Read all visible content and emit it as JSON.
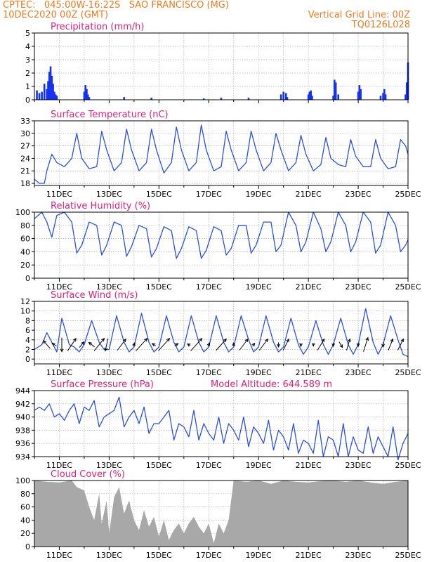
{
  "header": {
    "line1_left": "CPTEC:   045:00W-16:22S   SAO FRANCISCO (MG)",
    "line2_left": "10DEC2020 00Z (GMT)",
    "line2_right": "Vertical Grid Line: 00Z",
    "line3_right": "TQ0126L028"
  },
  "colors": {
    "header": "#f07a1e",
    "title": "#e0207a",
    "series": "#2a4fe8",
    "bars": "#1432f0",
    "cloud": "#a8a8a8",
    "grid": "#9a9a9a"
  },
  "x_axis": {
    "start_day": 10,
    "end_day": 25,
    "tick_labels": [
      "11DEC",
      "13DEC",
      "15DEC",
      "17DEC",
      "19DEC",
      "21DEC",
      "23DEC",
      "25DEC"
    ]
  },
  "chart_data": [
    {
      "id": "precip",
      "type": "bar",
      "title": "Precipitation (mm/h)",
      "ylim": [
        0,
        5
      ],
      "yticks": [
        0,
        1,
        2,
        3,
        4,
        5
      ],
      "xlabels_shown": false,
      "x": [
        10.1,
        10.2,
        10.3,
        10.4,
        10.5,
        10.55,
        10.6,
        10.65,
        10.7,
        10.75,
        10.8,
        10.85,
        10.9,
        12.0,
        12.05,
        12.1,
        12.15,
        12.2,
        13.6,
        14.7,
        16.8,
        17.5,
        18.6,
        19.9,
        20.0,
        20.1,
        20.15,
        21.0,
        21.05,
        21.1,
        21.15,
        22.0,
        22.05,
        22.1,
        22.2,
        23.0,
        23.05,
        23.1,
        23.9,
        24.0,
        24.05,
        24.1,
        24.9,
        24.95,
        25.0
      ],
      "values": [
        0.7,
        0.5,
        0.6,
        1.2,
        0.8,
        1.4,
        2.1,
        2.5,
        1.8,
        1.2,
        0.6,
        0.4,
        0.3,
        0.6,
        1.1,
        0.8,
        0.4,
        0.2,
        0.2,
        0.15,
        0.1,
        0.15,
        0.15,
        0.4,
        0.6,
        0.5,
        0.2,
        0.4,
        0.6,
        0.7,
        0.3,
        0.3,
        1.5,
        1.3,
        0.4,
        0.6,
        1.1,
        0.8,
        0.3,
        0.5,
        0.8,
        0.4,
        0.4,
        1.3,
        2.8
      ]
    },
    {
      "id": "temp",
      "type": "line",
      "title": "Surface Temperature (nC)",
      "ylim": [
        17.5,
        33
      ],
      "yticks": [
        18,
        21,
        24,
        27,
        30,
        33
      ],
      "xlabels_shown": true,
      "x": [
        10.0,
        10.2,
        10.4,
        10.5,
        10.7,
        10.9,
        11.2,
        11.5,
        11.7,
        11.9,
        12.2,
        12.5,
        12.7,
        12.9,
        13.2,
        13.5,
        13.7,
        13.9,
        14.2,
        14.5,
        14.7,
        14.9,
        15.2,
        15.5,
        15.7,
        15.9,
        16.2,
        16.5,
        16.7,
        16.9,
        17.2,
        17.5,
        17.7,
        17.9,
        18.2,
        18.5,
        18.7,
        18.9,
        19.2,
        19.5,
        19.7,
        19.9,
        20.2,
        20.5,
        20.7,
        20.9,
        21.2,
        21.5,
        21.7,
        21.9,
        22.2,
        22.5,
        22.7,
        22.9,
        23.2,
        23.5,
        23.7,
        23.9,
        24.2,
        24.5,
        24.7,
        24.9,
        25.0
      ],
      "values": [
        19.0,
        18.0,
        18.0,
        21.0,
        25.0,
        23.0,
        22.0,
        24.0,
        30.0,
        24.0,
        21.5,
        22.0,
        30.5,
        26.0,
        21.0,
        23.0,
        31.0,
        26.0,
        21.0,
        23.0,
        31.0,
        26.0,
        20.5,
        23.0,
        31.5,
        26.0,
        21.0,
        23.0,
        32.0,
        26.0,
        21.0,
        22.0,
        30.5,
        26.0,
        21.0,
        23.0,
        30.5,
        26.0,
        21.0,
        23.0,
        30.0,
        26.0,
        21.0,
        23.0,
        29.5,
        25.0,
        21.0,
        22.5,
        29.0,
        24.0,
        22.5,
        22.0,
        28.5,
        24.5,
        22.0,
        22.0,
        28.5,
        24.0,
        21.5,
        22.0,
        28.5,
        27.0,
        25.0
      ]
    },
    {
      "id": "rh",
      "type": "line",
      "title": "Relative Humidity (%)",
      "ylim": [
        0,
        100
      ],
      "yticks": [
        0,
        20,
        40,
        60,
        80,
        100
      ],
      "xlabels_shown": true,
      "x": [
        10.0,
        10.3,
        10.5,
        10.7,
        10.9,
        11.2,
        11.5,
        11.7,
        11.9,
        12.2,
        12.5,
        12.7,
        12.9,
        13.2,
        13.5,
        13.7,
        13.9,
        14.2,
        14.5,
        14.7,
        14.9,
        15.2,
        15.5,
        15.7,
        15.9,
        16.2,
        16.5,
        16.7,
        16.9,
        17.2,
        17.5,
        17.7,
        17.9,
        18.2,
        18.5,
        18.7,
        18.9,
        19.2,
        19.5,
        19.7,
        19.9,
        20.2,
        20.5,
        20.7,
        20.9,
        21.2,
        21.5,
        21.7,
        21.9,
        22.2,
        22.5,
        22.7,
        22.9,
        23.2,
        23.5,
        23.7,
        23.9,
        24.2,
        24.5,
        24.7,
        24.9,
        25.0
      ],
      "values": [
        90.0,
        100.0,
        85.0,
        62.0,
        95.0,
        100.0,
        85.0,
        38.0,
        50.0,
        85.0,
        80.0,
        35.0,
        50.0,
        85.0,
        80.0,
        33.0,
        48.0,
        80.0,
        75.0,
        32.0,
        45.0,
        78.0,
        72.0,
        30.0,
        45.0,
        78.0,
        72.0,
        30.0,
        42.0,
        78.0,
        72.0,
        35.0,
        45.0,
        80.0,
        80.0,
        38.0,
        50.0,
        85.0,
        85.0,
        40.0,
        50.0,
        100.0,
        80.0,
        40.0,
        55.0,
        100.0,
        75.0,
        40.0,
        55.0,
        100.0,
        80.0,
        40.0,
        55.0,
        100.0,
        85.0,
        38.0,
        50.0,
        100.0,
        80.0,
        40.0,
        50.0,
        58.0
      ]
    },
    {
      "id": "wind",
      "type": "line",
      "title": "Surface Wind (m/s)",
      "ylim": [
        -1,
        12
      ],
      "yticks": [
        0,
        2,
        4,
        6,
        8,
        10,
        12
      ],
      "xlabels_shown": true,
      "x": [
        10.0,
        10.3,
        10.5,
        10.7,
        10.9,
        11.1,
        11.4,
        11.6,
        11.8,
        12.0,
        12.3,
        12.6,
        12.8,
        13.0,
        13.3,
        13.6,
        13.8,
        14.0,
        14.3,
        14.6,
        14.8,
        15.0,
        15.3,
        15.6,
        15.8,
        16.0,
        16.3,
        16.6,
        16.8,
        17.0,
        17.3,
        17.6,
        17.8,
        18.0,
        18.3,
        18.6,
        18.8,
        19.0,
        19.3,
        19.6,
        19.8,
        20.0,
        20.3,
        20.6,
        20.8,
        21.0,
        21.3,
        21.6,
        21.8,
        22.0,
        22.3,
        22.6,
        22.8,
        23.0,
        23.3,
        23.6,
        23.8,
        24.0,
        24.3,
        24.6,
        24.8,
        25.0
      ],
      "values": [
        2.0,
        3.0,
        5.5,
        3.5,
        1.5,
        8.5,
        3.0,
        2.5,
        1.5,
        3.0,
        8.0,
        3.5,
        2.0,
        2.0,
        9.0,
        3.5,
        1.5,
        2.5,
        9.5,
        3.5,
        1.5,
        2.5,
        9.0,
        3.5,
        1.5,
        2.5,
        9.0,
        3.5,
        1.5,
        2.5,
        9.0,
        3.5,
        1.5,
        2.5,
        9.0,
        4.0,
        1.5,
        2.5,
        9.0,
        3.5,
        1.5,
        2.5,
        8.5,
        3.0,
        1.0,
        2.5,
        8.0,
        3.0,
        1.0,
        3.0,
        8.5,
        3.0,
        1.0,
        3.0,
        10.5,
        3.5,
        1.0,
        3.0,
        9.0,
        4.0,
        1.0,
        0.5
      ],
      "arrows": [
        {
          "x": 10.5,
          "u": -1.2,
          "v": 1.4
        },
        {
          "x": 10.8,
          "u": -0.8,
          "v": 0.5
        },
        {
          "x": 11.1,
          "u": 0.0,
          "v": -2.5
        },
        {
          "x": 11.5,
          "u": 1.5,
          "v": 2.2
        },
        {
          "x": 11.9,
          "u": 0.8,
          "v": 1.0
        },
        {
          "x": 12.3,
          "u": -1.0,
          "v": 0.8
        },
        {
          "x": 12.6,
          "u": 1.8,
          "v": 2.2
        },
        {
          "x": 12.9,
          "u": -0.5,
          "v": -2.2
        },
        {
          "x": 13.5,
          "u": 1.5,
          "v": 2.0
        },
        {
          "x": 14.0,
          "u": 0.2,
          "v": 0.6
        },
        {
          "x": 14.3,
          "u": 2.0,
          "v": 2.2
        },
        {
          "x": 14.8,
          "u": -0.6,
          "v": 0.4
        },
        {
          "x": 15.2,
          "u": 2.0,
          "v": 2.2
        },
        {
          "x": 15.7,
          "u": 0.6,
          "v": 0.4
        },
        {
          "x": 16.2,
          "u": -0.5,
          "v": 0.3
        },
        {
          "x": 16.5,
          "u": 2.0,
          "v": 2.2
        },
        {
          "x": 17.0,
          "u": 0.3,
          "v": 0.6
        },
        {
          "x": 17.5,
          "u": 1.8,
          "v": 2.0
        },
        {
          "x": 18.0,
          "u": 0.0,
          "v": 0.6
        },
        {
          "x": 18.4,
          "u": 1.5,
          "v": 2.0
        },
        {
          "x": 18.8,
          "u": 0.4,
          "v": 0.5
        },
        {
          "x": 19.2,
          "u": 1.5,
          "v": 2.0
        },
        {
          "x": 19.8,
          "u": 0.0,
          "v": -0.8
        },
        {
          "x": 20.1,
          "u": 1.0,
          "v": 2.0
        },
        {
          "x": 20.7,
          "u": 0.0,
          "v": -0.6
        },
        {
          "x": 21.2,
          "u": 0.0,
          "v": -0.5
        },
        {
          "x": 21.5,
          "u": 1.2,
          "v": 2.0
        },
        {
          "x": 22.0,
          "u": 0.0,
          "v": -0.6
        },
        {
          "x": 22.3,
          "u": 0.6,
          "v": -1.0
        },
        {
          "x": 22.6,
          "u": 0.6,
          "v": 2.0
        },
        {
          "x": 23.0,
          "u": 0.0,
          "v": -0.6
        },
        {
          "x": 23.3,
          "u": 0.8,
          "v": 2.5
        },
        {
          "x": 24.0,
          "u": 0.0,
          "v": -0.8
        },
        {
          "x": 24.3,
          "u": 0.8,
          "v": 2.0
        },
        {
          "x": 24.7,
          "u": 1.0,
          "v": 2.0
        }
      ]
    },
    {
      "id": "pres",
      "type": "line",
      "title": "Surface Pressure (hPa)",
      "subtitle": "Model Altitude: 644.589 m",
      "ylim": [
        934,
        944
      ],
      "yticks": [
        934,
        936,
        938,
        940,
        942,
        944
      ],
      "xlabels_shown": true,
      "x": [
        10.0,
        10.2,
        10.4,
        10.6,
        10.8,
        11.0,
        11.2,
        11.4,
        11.6,
        11.8,
        12.0,
        12.2,
        12.4,
        12.6,
        12.8,
        13.0,
        13.2,
        13.4,
        13.6,
        13.8,
        14.0,
        14.2,
        14.4,
        14.6,
        14.8,
        15.0,
        15.2,
        15.4,
        15.6,
        15.8,
        16.0,
        16.2,
        16.4,
        16.6,
        16.8,
        17.0,
        17.2,
        17.4,
        17.6,
        17.8,
        18.0,
        18.2,
        18.4,
        18.6,
        18.8,
        19.0,
        19.2,
        19.4,
        19.6,
        19.8,
        20.0,
        20.2,
        20.4,
        20.6,
        20.8,
        21.0,
        21.2,
        21.4,
        21.6,
        21.8,
        22.0,
        22.2,
        22.4,
        22.6,
        22.8,
        23.0,
        23.2,
        23.4,
        23.6,
        23.8,
        24.0,
        24.2,
        24.4,
        24.6,
        24.8,
        25.0
      ],
      "values": [
        941.0,
        941.5,
        941.0,
        942.0,
        940.0,
        940.5,
        939.5,
        941.0,
        942.0,
        939.0,
        941.5,
        941.0,
        942.5,
        938.5,
        940.0,
        940.5,
        941.0,
        943.0,
        938.5,
        940.0,
        941.0,
        939.0,
        941.5,
        937.5,
        939.0,
        939.0,
        940.0,
        941.0,
        936.5,
        939.0,
        938.5,
        937.0,
        941.0,
        936.5,
        939.0,
        937.5,
        936.5,
        940.0,
        936.0,
        939.0,
        938.0,
        936.5,
        940.0,
        935.5,
        938.5,
        937.5,
        936.0,
        939.5,
        935.0,
        938.0,
        937.0,
        935.0,
        939.0,
        934.5,
        936.5,
        936.0,
        934.5,
        939.5,
        934.0,
        937.0,
        936.5,
        934.0,
        939.0,
        934.0,
        937.0,
        935.0,
        934.5,
        938.5,
        934.5,
        937.0,
        935.5,
        934.0,
        938.5,
        933.5,
        936.0,
        937.5
      ]
    },
    {
      "id": "cloud",
      "type": "area",
      "title": "Cloud Cover (%)",
      "ylim": [
        0,
        100
      ],
      "yticks": [
        0,
        20,
        40,
        60,
        80,
        100
      ],
      "xlabels_shown": true,
      "x": [
        10.0,
        10.5,
        11.0,
        11.5,
        11.7,
        12.0,
        12.2,
        12.4,
        12.6,
        12.7,
        12.9,
        13.0,
        13.2,
        13.4,
        13.6,
        13.8,
        14.0,
        14.2,
        14.4,
        14.6,
        14.8,
        15.0,
        15.2,
        15.4,
        15.6,
        15.8,
        16.0,
        16.2,
        16.4,
        16.6,
        16.8,
        17.0,
        17.2,
        17.4,
        17.6,
        17.8,
        18.0,
        18.5,
        19.0,
        19.5,
        20.0,
        20.5,
        21.0,
        21.5,
        22.0,
        22.5,
        23.0,
        23.5,
        24.0,
        24.5,
        25.0
      ],
      "values": [
        100.0,
        98.0,
        97.0,
        100.0,
        90.0,
        85.0,
        60.0,
        40.0,
        80.0,
        35.0,
        70.0,
        20.0,
        75.0,
        90.0,
        50.0,
        70.0,
        40.0,
        25.0,
        55.0,
        30.0,
        45.0,
        15.0,
        40.0,
        10.0,
        25.0,
        35.0,
        20.0,
        35.0,
        45.0,
        30.0,
        20.0,
        35.0,
        5.0,
        35.0,
        20.0,
        40.0,
        100.0,
        98.0,
        100.0,
        95.0,
        100.0,
        98.0,
        97.0,
        99.0,
        100.0,
        98.0,
        100.0,
        97.0,
        95.0,
        98.0,
        100.0
      ]
    }
  ]
}
